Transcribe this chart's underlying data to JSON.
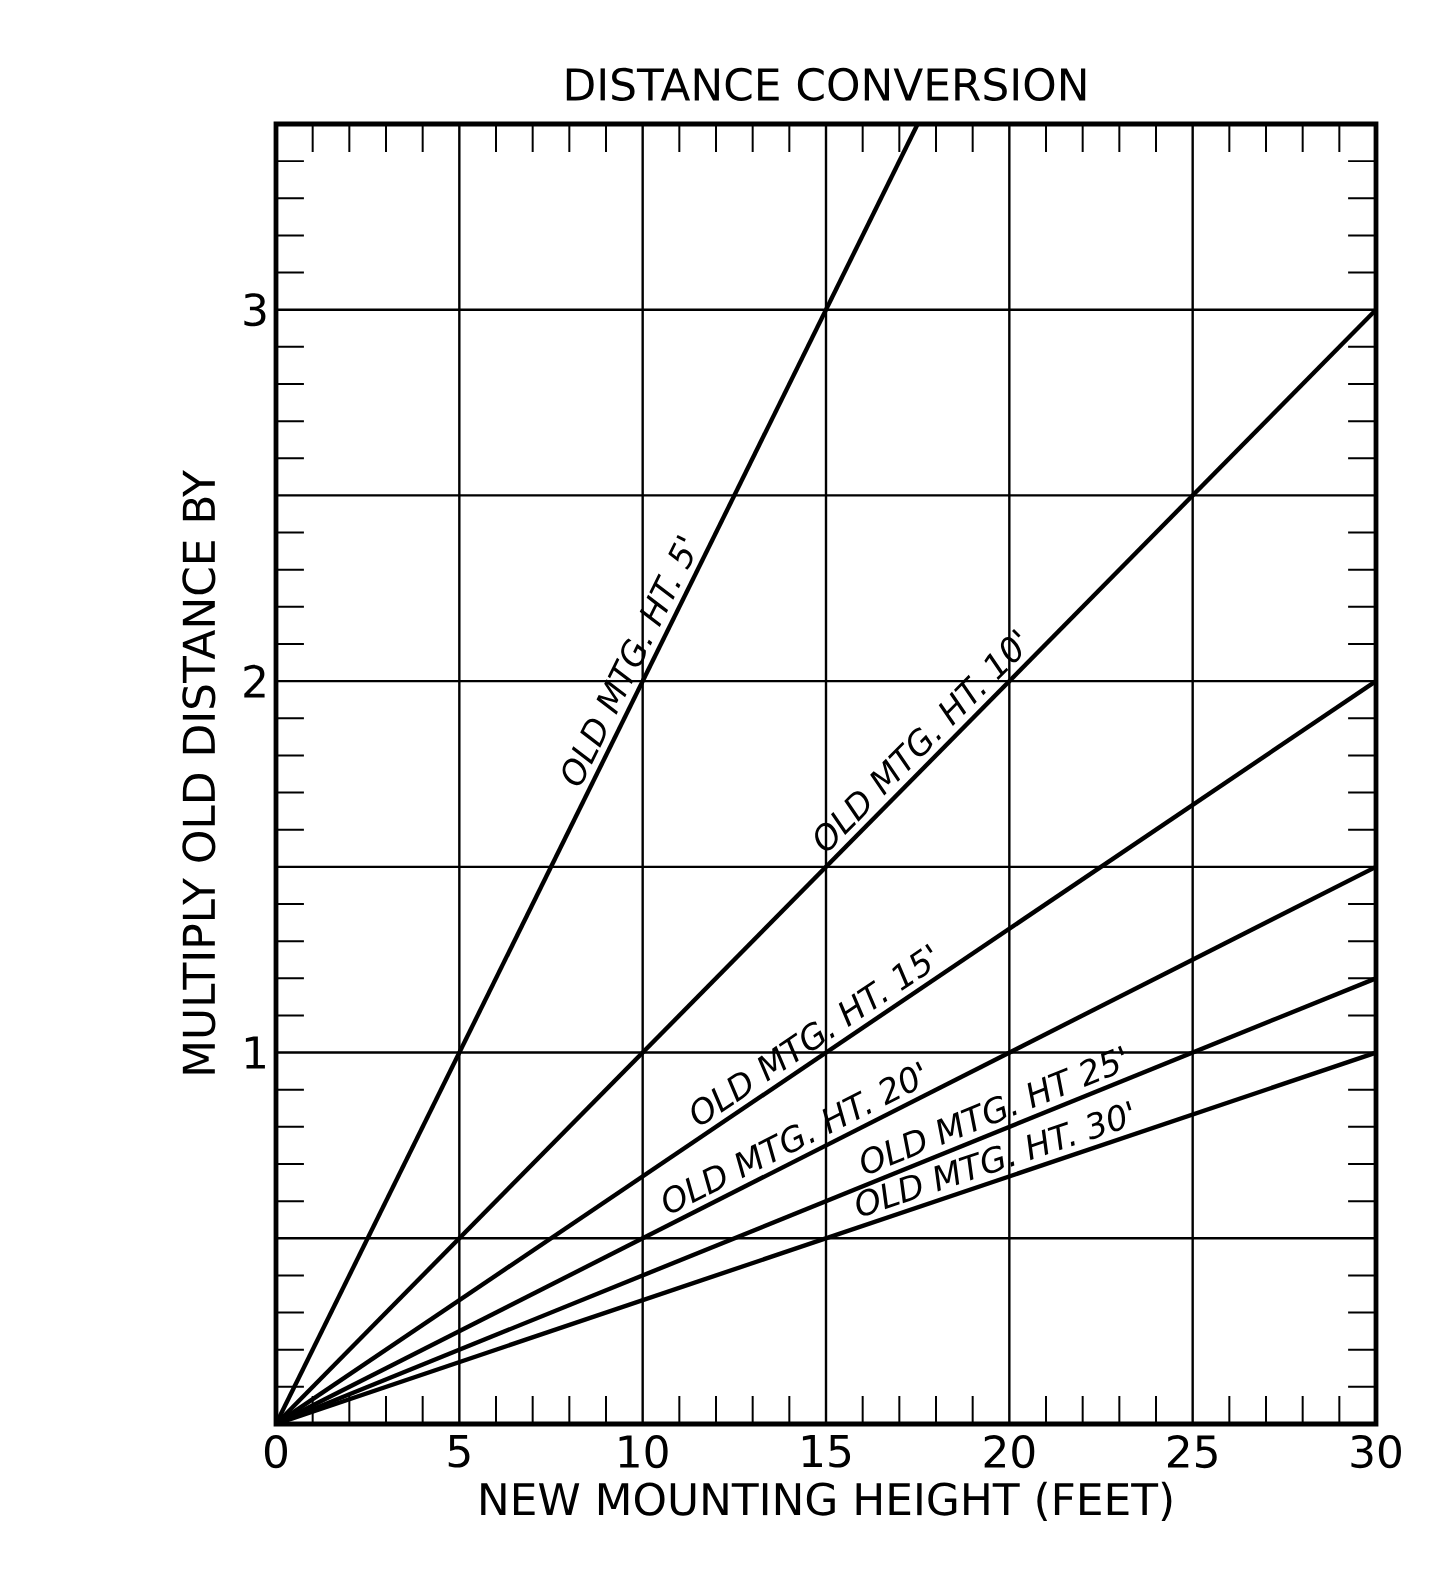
{
  "chart_data": {
    "type": "line",
    "title": "DISTANCE CONVERSION",
    "xlabel": "NEW MOUNTING HEIGHT (FEET)",
    "ylabel": "MULTIPLY OLD DISTANCE BY",
    "xlim": [
      0,
      30
    ],
    "ylim": [
      0,
      3.5
    ],
    "xticks": [
      0,
      5,
      10,
      15,
      20,
      25,
      30
    ],
    "yticks": [
      {
        "value": 0,
        "label": null
      },
      {
        "value": 0.5,
        "label": null
      },
      1,
      {
        "value": 1.5,
        "label": null
      },
      2,
      {
        "value": 2.5,
        "label": null
      },
      3,
      {
        "value": 3.5,
        "label": null
      }
    ],
    "grid": true,
    "line_style": "solid",
    "series": [
      {
        "name": "OLD MTG. HT. 5'",
        "color": "#000000",
        "x": [
          0,
          17.5
        ],
        "values": [
          0,
          3.5
        ]
      },
      {
        "name": "OLD MTG. HT. 10'",
        "color": "#000000",
        "x": [
          0,
          30
        ],
        "values": [
          0,
          3
        ]
      },
      {
        "name": "OLD MTG. HT. 15'",
        "color": "#000000",
        "x": [
          0,
          30
        ],
        "values": [
          0,
          2
        ]
      },
      {
        "name": "OLD MTG. HT. 20'",
        "color": "#000000",
        "x": [
          0,
          30
        ],
        "values": [
          0,
          1.5
        ]
      },
      {
        "name": "OLD MTG. HT 25'",
        "color": "#000000",
        "x": [
          0,
          30
        ],
        "values": [
          0,
          1.2
        ]
      },
      {
        "name": "OLD MTG. HT. 30'",
        "color": "#000000",
        "x": [
          0,
          30
        ],
        "values": [
          0,
          1
        ]
      }
    ]
  }
}
